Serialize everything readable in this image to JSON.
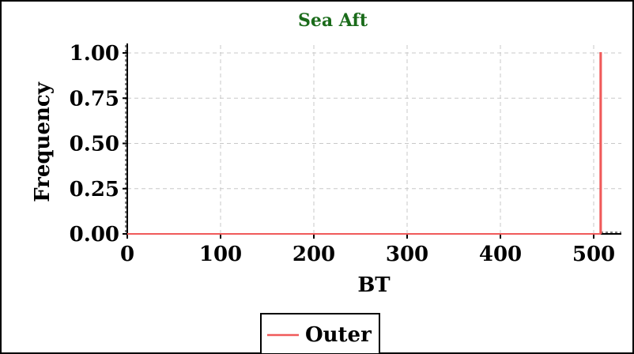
{
  "colors": {
    "title": "#1a6b1a",
    "series": "#f05a5a",
    "grid": "#c8c8c8",
    "axis": "#000000"
  },
  "chart_data": {
    "type": "line",
    "title": "Sea Aft",
    "xlabel": "BT",
    "ylabel": "Frequency",
    "xlim": [
      0,
      530
    ],
    "ylim": [
      0,
      1.0
    ],
    "grid": true,
    "legend_position": "bottom-center",
    "x_ticks": [
      "0",
      "100",
      "200",
      "300",
      "400",
      "500"
    ],
    "y_ticks": [
      "0.00",
      "0.25",
      "0.50",
      "0.75",
      "1.00"
    ],
    "series": [
      {
        "name": "Outer",
        "x": [
          0,
          507,
          507,
          508,
          508
        ],
        "y": [
          0,
          0,
          1.0,
          1.0,
          0
        ]
      }
    ]
  }
}
